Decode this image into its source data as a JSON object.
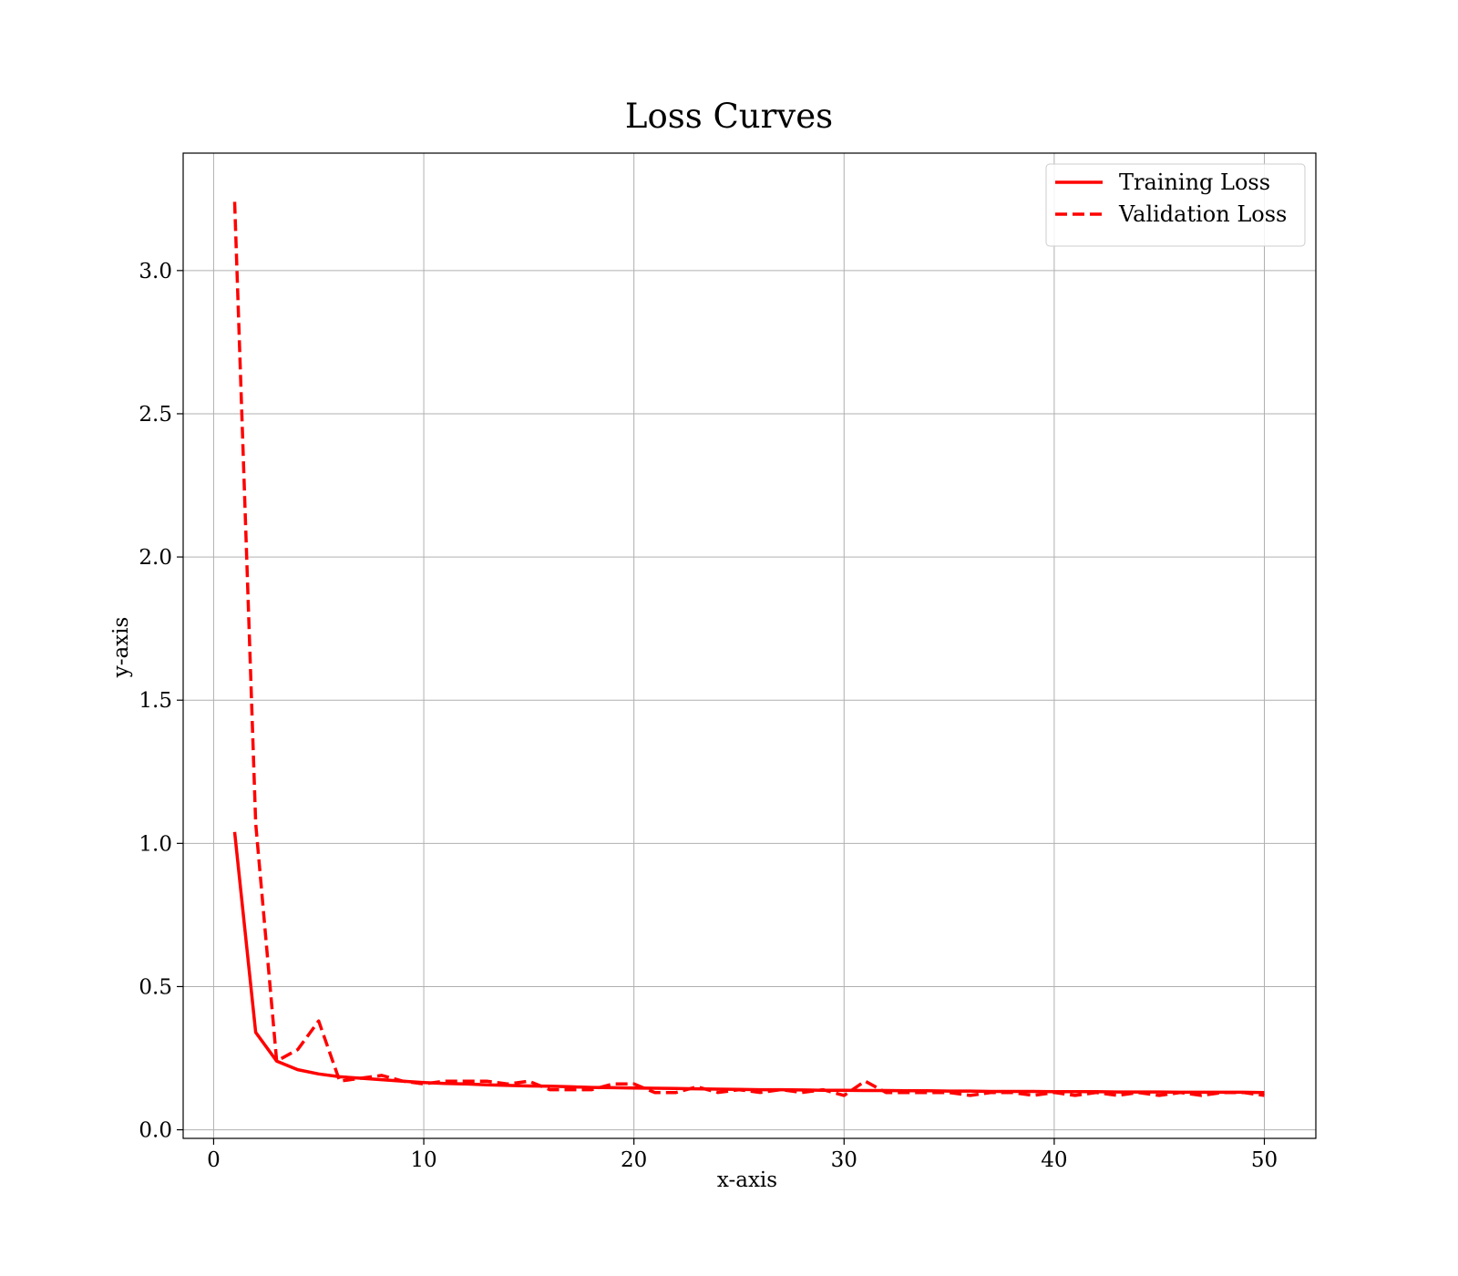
{
  "chart_data": {
    "type": "line",
    "title": "Loss Curves",
    "xlabel": "x-axis",
    "ylabel": "y-axis",
    "xlim": [
      -1.45,
      52.45
    ],
    "ylim": [
      -0.03,
      3.41
    ],
    "xticks": [
      0,
      10,
      20,
      30,
      40,
      50
    ],
    "xtick_labels": [
      "0",
      "10",
      "20",
      "30",
      "40",
      "50"
    ],
    "yticks": [
      0.0,
      0.5,
      1.0,
      1.5,
      2.0,
      2.5,
      3.0
    ],
    "ytick_labels": [
      "0.0",
      "0.5",
      "1.0",
      "1.5",
      "2.0",
      "2.5",
      "3.0"
    ],
    "grid": true,
    "legend_position": "top-right",
    "x": [
      1,
      2,
      3,
      4,
      5,
      6,
      7,
      8,
      9,
      10,
      11,
      12,
      13,
      14,
      15,
      16,
      17,
      18,
      19,
      20,
      21,
      22,
      23,
      24,
      25,
      26,
      27,
      28,
      29,
      30,
      31,
      32,
      33,
      34,
      35,
      36,
      37,
      38,
      39,
      40,
      41,
      42,
      43,
      44,
      45,
      46,
      47,
      48,
      49,
      50
    ],
    "series": [
      {
        "name": "Training Loss",
        "color": "#ff0000",
        "style": "solid",
        "values": [
          1.04,
          0.34,
          0.24,
          0.21,
          0.195,
          0.185,
          0.18,
          0.175,
          0.17,
          0.165,
          0.162,
          0.16,
          0.157,
          0.155,
          0.153,
          0.152,
          0.15,
          0.148,
          0.147,
          0.146,
          0.145,
          0.144,
          0.143,
          0.142,
          0.141,
          0.14,
          0.14,
          0.139,
          0.138,
          0.138,
          0.137,
          0.137,
          0.136,
          0.136,
          0.135,
          0.135,
          0.134,
          0.134,
          0.134,
          0.133,
          0.133,
          0.133,
          0.132,
          0.132,
          0.132,
          0.131,
          0.131,
          0.131,
          0.131,
          0.13
        ]
      },
      {
        "name": "Validation Loss",
        "color": "#ff0000",
        "style": "dashed",
        "values": [
          3.24,
          1.07,
          0.24,
          0.28,
          0.38,
          0.17,
          0.18,
          0.19,
          0.17,
          0.16,
          0.17,
          0.17,
          0.17,
          0.16,
          0.17,
          0.14,
          0.14,
          0.14,
          0.16,
          0.16,
          0.13,
          0.13,
          0.15,
          0.13,
          0.14,
          0.13,
          0.14,
          0.13,
          0.14,
          0.12,
          0.17,
          0.13,
          0.13,
          0.13,
          0.13,
          0.12,
          0.13,
          0.13,
          0.12,
          0.13,
          0.12,
          0.13,
          0.12,
          0.13,
          0.12,
          0.13,
          0.12,
          0.13,
          0.13,
          0.12
        ]
      }
    ]
  }
}
